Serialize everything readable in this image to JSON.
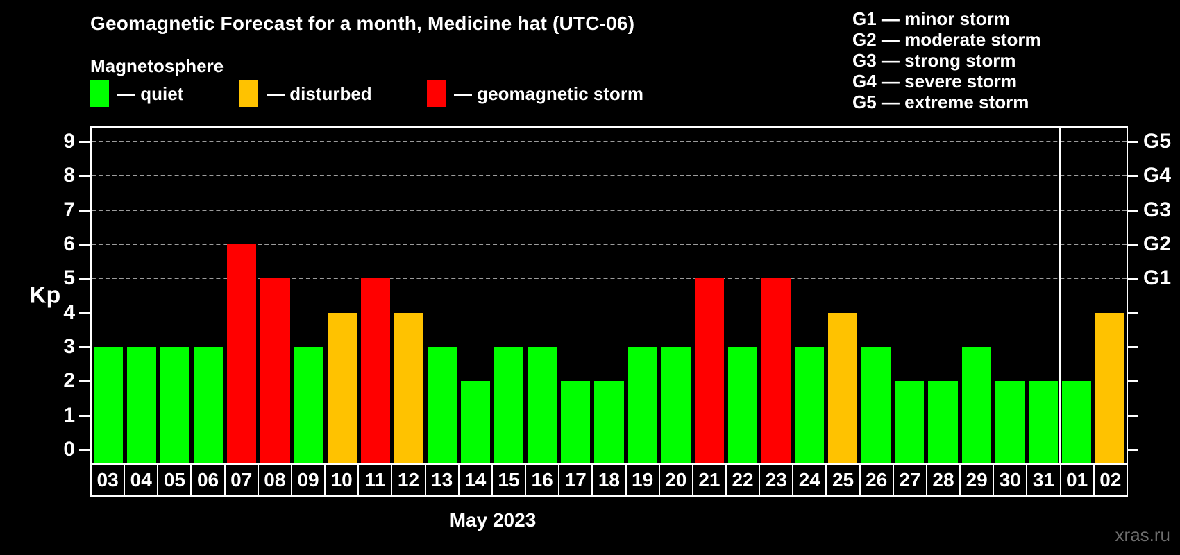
{
  "header": {
    "title": "Geomagnetic Forecast for a month, Medicine hat (UTC-06)",
    "subtitle": "Magnetosphere"
  },
  "legend": {
    "items": [
      {
        "key": "quiet",
        "label": "— quiet",
        "color": "#00ff00"
      },
      {
        "key": "disturbed",
        "label": "— disturbed",
        "color": "#ffc200"
      },
      {
        "key": "storm",
        "label": "— geomagnetic storm",
        "color": "#ff0000"
      }
    ]
  },
  "storm_scale": {
    "items": [
      "G1 — minor storm",
      "G2 — moderate storm",
      "G3 — strong storm",
      "G4 — severe storm",
      "G5 — extreme storm"
    ]
  },
  "axes": {
    "y_label": "Kp",
    "x_label": "May 2023"
  },
  "watermark": "xras.ru",
  "chart_data": {
    "type": "bar",
    "title": "Geomagnetic Forecast for a month, Medicine hat (UTC-06)",
    "xlabel": "May 2023",
    "ylabel": "Kp",
    "ylim": [
      -0.4,
      9.4
    ],
    "y_ticks": [
      0,
      1,
      2,
      3,
      4,
      5,
      6,
      7,
      8,
      9
    ],
    "gridline_levels": [
      5,
      6,
      7,
      8,
      9
    ],
    "right_axis_labels": [
      {
        "label": "G1",
        "kp": 5
      },
      {
        "label": "G2",
        "kp": 6
      },
      {
        "label": "G3",
        "kp": 7
      },
      {
        "label": "G4",
        "kp": 8
      },
      {
        "label": "G5",
        "kp": 9
      }
    ],
    "categories": [
      "03",
      "04",
      "05",
      "06",
      "07",
      "08",
      "09",
      "10",
      "11",
      "12",
      "13",
      "14",
      "15",
      "16",
      "17",
      "18",
      "19",
      "20",
      "21",
      "22",
      "23",
      "24",
      "25",
      "26",
      "27",
      "28",
      "29",
      "30",
      "31",
      "01",
      "02"
    ],
    "values": [
      3,
      3,
      3,
      3,
      6,
      5,
      3,
      4,
      5,
      4,
      3,
      2,
      3,
      3,
      2,
      2,
      3,
      3,
      5,
      3,
      5,
      3,
      4,
      3,
      2,
      2,
      3,
      2,
      2,
      2,
      4
    ],
    "statuses": [
      "quiet",
      "quiet",
      "quiet",
      "quiet",
      "storm",
      "storm",
      "quiet",
      "disturbed",
      "storm",
      "disturbed",
      "quiet",
      "quiet",
      "quiet",
      "quiet",
      "quiet",
      "quiet",
      "quiet",
      "quiet",
      "storm",
      "quiet",
      "storm",
      "quiet",
      "disturbed",
      "quiet",
      "quiet",
      "quiet",
      "quiet",
      "quiet",
      "quiet",
      "quiet",
      "disturbed"
    ],
    "status_colors": {
      "quiet": "#00ff00",
      "disturbed": "#ffc200",
      "storm": "#ff0000"
    },
    "month_divider_after_index": 28,
    "grid": "horizontal dashed lines at Kp 5–9 (G1–G5)",
    "legend_position": "top-left"
  }
}
